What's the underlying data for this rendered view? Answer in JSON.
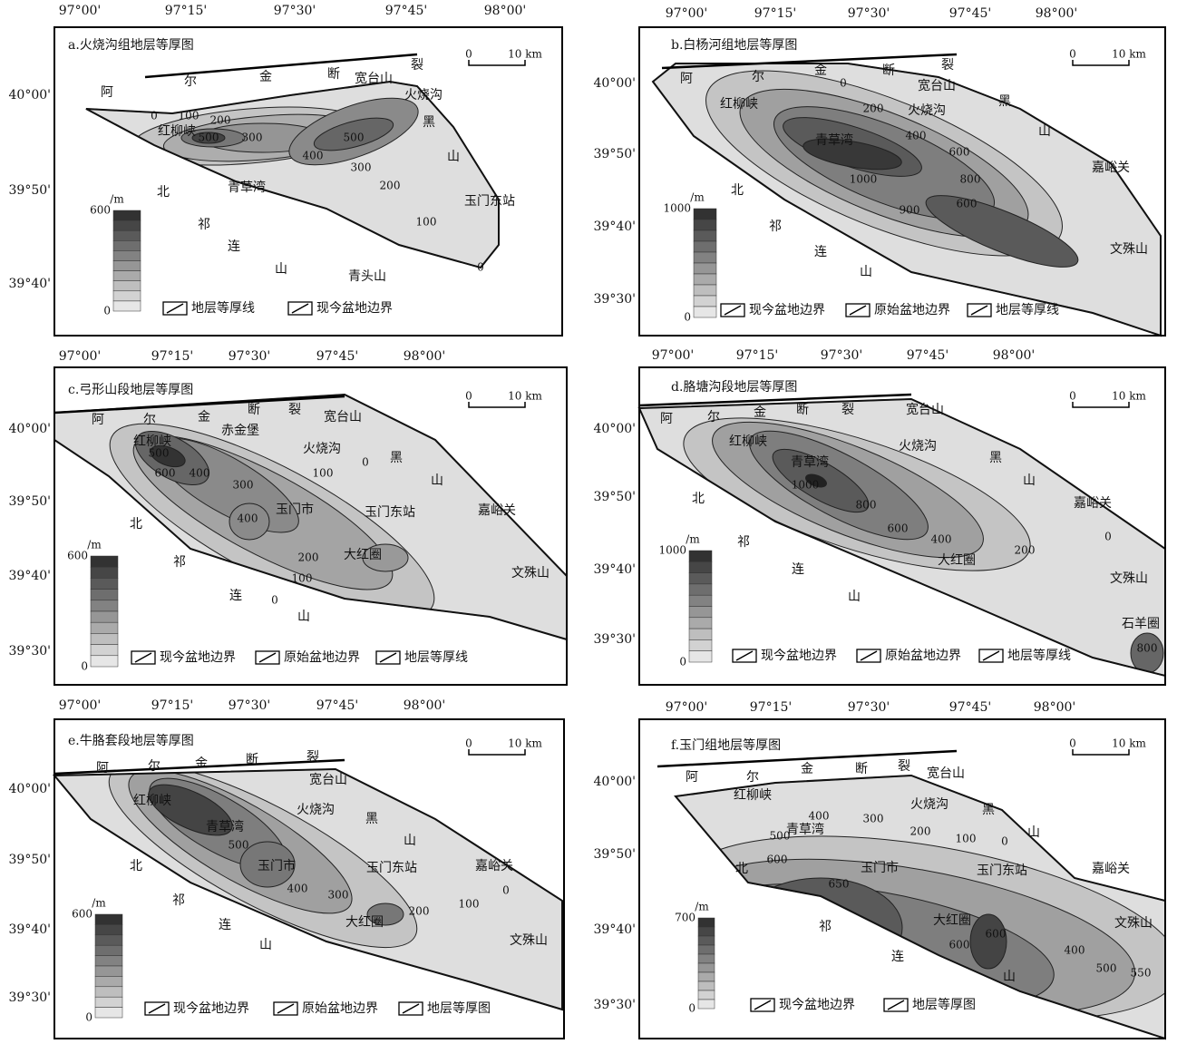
{
  "panels": [
    {
      "title": "a.火烧沟组地层等厚图",
      "lon_labels": [
        "97°00'",
        "97°15'",
        "97°30'",
        "97°45'",
        "98°00'"
      ],
      "lat_labels": [
        "40°00'",
        "39°50'",
        "39°40'"
      ],
      "scale_zero": 0,
      "scale_label": "10 km",
      "places": [
        "阿",
        "尔",
        "金",
        "断",
        "宽台山",
        "裂",
        "火烧沟",
        "红柳峡",
        "黑",
        "山",
        "北",
        "青草湾",
        "玉门东站",
        "祁",
        "连",
        "山",
        "青头山"
      ],
      "contours": [
        0,
        100,
        200,
        300,
        500,
        400,
        500,
        300,
        200,
        100,
        0
      ],
      "legend": {
        "unit": "/m",
        "max": 600,
        "min": 0,
        "items": [
          "地层等厚线",
          "现今盆地边界"
        ]
      }
    },
    {
      "title": "b.白杨河组地层等厚图",
      "lon_labels": [
        "97°00'",
        "97°15'",
        "97°30'",
        "97°45'",
        "98°00'"
      ],
      "lat_labels": [
        "40°00'",
        "39°50'",
        "39°40'",
        "39°30'"
      ],
      "scale_zero": 0,
      "scale_label": "10 km",
      "places": [
        "阿",
        "尔",
        "金",
        "断",
        "裂",
        "宽台山",
        "红柳峡",
        "黑",
        "火烧沟",
        "山",
        "青草湾",
        "嘉峪关",
        "北",
        "祁",
        "连",
        "文殊山",
        "山"
      ],
      "contours": [
        0,
        200,
        400,
        600,
        800,
        1000,
        900,
        600
      ],
      "legend": {
        "unit": "/m",
        "max": 1000,
        "min": 0,
        "items": [
          "现今盆地边界",
          "原始盆地边界",
          "地层等厚线"
        ]
      }
    },
    {
      "title": "c.弓形山段地层等厚图",
      "lon_labels": [
        "97°00'",
        "97°15'",
        "97°30'",
        "97°45'",
        "98°00'"
      ],
      "lat_labels": [
        "40°00'",
        "39°50'",
        "39°40'",
        "39°30'"
      ],
      "scale_zero": 0,
      "scale_label": "10 km",
      "places": [
        "阿",
        "尔",
        "金",
        "断",
        "裂",
        "宽台山",
        "赤金堡",
        "红柳峡",
        "火烧沟",
        "黑",
        "山",
        "嘉峪关",
        "玉门市",
        "玉门东站",
        "北",
        "大红圈",
        "祁",
        "文殊山",
        "连",
        "山"
      ],
      "contours": [
        500,
        600,
        400,
        300,
        100,
        0,
        400,
        200,
        100,
        0
      ],
      "legend": {
        "unit": "/m",
        "max": 600,
        "min": 0,
        "items": [
          "现今盆地边界",
          "原始盆地边界",
          "地层等厚线"
        ]
      }
    },
    {
      "title": "d.胳塘沟段地层等厚图",
      "lon_labels": [
        "97°00'",
        "97°15'",
        "97°30'",
        "97°45'",
        "98°00'"
      ],
      "lat_labels": [
        "40°00'",
        "39°50'",
        "39°40'",
        "39°30'"
      ],
      "scale_zero": 0,
      "scale_label": "10 km",
      "places": [
        "阿",
        "尔",
        "金",
        "断",
        "裂",
        "宽台山",
        "红柳峡",
        "火烧沟",
        "黑",
        "青草湾",
        "山",
        "北",
        "嘉峪关",
        "祁",
        "大红圈",
        "连",
        "文殊山",
        "山",
        "石羊圈"
      ],
      "contours": [
        1000,
        800,
        600,
        400,
        200,
        0,
        800
      ],
      "legend": {
        "unit": "/m",
        "max": 1000,
        "min": 0,
        "items": [
          "现今盆地边界",
          "原始盆地边界",
          "地层等厚线"
        ]
      }
    },
    {
      "title": "e.牛胳套段地层等厚图",
      "lon_labels": [
        "97°00'",
        "97°15'",
        "97°30'",
        "97°45'",
        "98°00'"
      ],
      "lat_labels": [
        "40°00'",
        "39°50'",
        "39°40'",
        "39°30'"
      ],
      "scale_zero": 0,
      "scale_label": "10 km",
      "places": [
        "阿",
        "尔",
        "金",
        "断",
        "裂",
        "宽台山",
        "红柳峡",
        "火烧沟",
        "黑",
        "青草湾",
        "山",
        "北",
        "玉门市",
        "玉门东站",
        "嘉峪关",
        "祁",
        "大红圈",
        "连",
        "文殊山",
        "山"
      ],
      "contours": [
        500,
        400,
        300,
        200,
        100,
        0
      ],
      "legend": {
        "unit": "/m",
        "max": 600,
        "min": 0,
        "items": [
          "现今盆地边界",
          "原始盆地边界",
          "地层等厚图"
        ]
      }
    },
    {
      "title": "f.玉门组地层等厚图",
      "lon_labels": [
        "97°00'",
        "97°15'",
        "97°30'",
        "97°45'",
        "98°00'"
      ],
      "lat_labels": [
        "40°00'",
        "39°50'",
        "39°40'",
        "39°30'"
      ],
      "scale_zero": 0,
      "scale_label": "10 km",
      "places": [
        "阿",
        "尔",
        "金",
        "断",
        "裂",
        "宽台山",
        "红柳峡",
        "火烧沟",
        "黑",
        "山",
        "青草湾",
        "北",
        "玉门市",
        "玉门东站",
        "嘉峪关",
        "大红圈",
        "文殊山",
        "祁",
        "连",
        "山"
      ],
      "contours": [
        400,
        300,
        200,
        100,
        0,
        500,
        600,
        650,
        600,
        600,
        400,
        500,
        550
      ],
      "legend": {
        "unit": "/m",
        "max": 700,
        "min": 0,
        "items": [
          "现今盆地边界",
          "地层等厚图"
        ]
      }
    }
  ]
}
